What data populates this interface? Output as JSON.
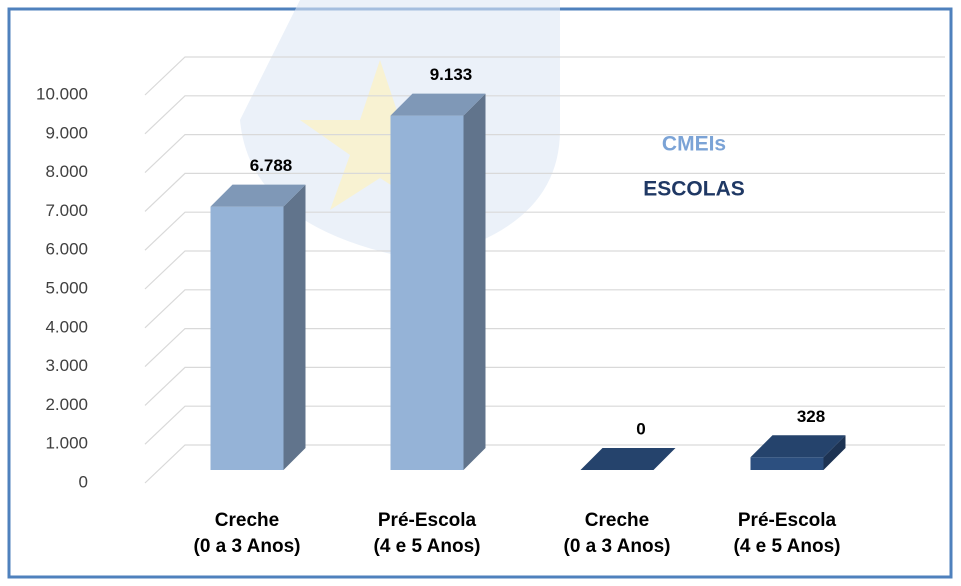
{
  "chart_data": {
    "type": "bar3d",
    "categories": [
      "Creche\n(0 a 3 Anos)",
      "Pré-Escola\n(4 e 5 Anos)",
      "Creche\n(0 a 3 Anos)",
      "Pré-Escola\n(4 e 5 Anos)"
    ],
    "series": [
      {
        "name": "CMEIs",
        "color": "#95b3d7",
        "values": [
          6788,
          9133,
          null,
          null
        ],
        "value_labels": [
          "6.788",
          "9.133",
          null,
          null
        ]
      },
      {
        "name": "ESCOLAS",
        "color": "#2c4f7f",
        "values": [
          null,
          null,
          0,
          328
        ],
        "value_labels": [
          null,
          null,
          "0",
          "328"
        ]
      }
    ],
    "ylim": [
      0,
      10000
    ],
    "yticks": [
      0,
      {
        "value": 1000,
        "label": "1.000"
      },
      {
        "value": 2000,
        "label": "2.000"
      },
      {
        "value": 3000,
        "label": "3.000"
      },
      {
        "value": 4000,
        "label": "4.000"
      },
      {
        "value": 5000,
        "label": "5.000"
      },
      {
        "value": 6000,
        "label": "6.000"
      },
      {
        "value": 7000,
        "label": "7.000"
      },
      {
        "value": 8000,
        "label": "8.000"
      },
      {
        "value": 9000,
        "label": "9.000"
      },
      {
        "value": 10000,
        "label": "10.000"
      }
    ],
    "grid": true
  }
}
